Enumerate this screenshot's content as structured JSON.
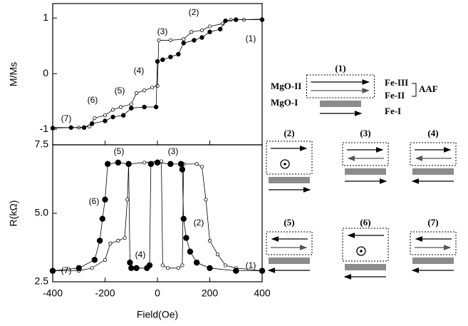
{
  "chart_data": [
    {
      "type": "line",
      "ylabel": "M/Ms",
      "xlim": [
        -400,
        400
      ],
      "ylim": [
        -1.28,
        1.26
      ],
      "xticks": [
        -400,
        -200,
        0,
        200,
        400
      ],
      "yticks": [
        -1,
        0,
        1
      ],
      "annotations": [
        "(1)",
        "(2)",
        "(3)",
        "(4)",
        "(5)",
        "(6)",
        "(7)"
      ],
      "series": [
        {
          "color": "#000000",
          "marker": "open",
          "x": [
            -400,
            -300,
            -260,
            -240,
            -200,
            -170,
            -140,
            -100,
            -80,
            -50,
            -20,
            0,
            5,
            50,
            100,
            130,
            170,
            200,
            250,
            280,
            330,
            400
          ],
          "values": [
            -0.97,
            -0.97,
            -0.95,
            -0.8,
            -0.75,
            -0.65,
            -0.6,
            -0.55,
            -0.35,
            -0.3,
            -0.25,
            -0.22,
            0.6,
            0.6,
            0.62,
            0.75,
            0.78,
            0.85,
            0.9,
            0.97,
            0.97,
            0.98
          ]
        },
        {
          "color": "#000000",
          "marker": "filled",
          "x": [
            400,
            300,
            260,
            240,
            200,
            170,
            140,
            100,
            80,
            50,
            20,
            0,
            -5,
            -50,
            -100,
            -130,
            -170,
            -200,
            -250,
            -280,
            -330,
            -400
          ],
          "values": [
            0.97,
            0.97,
            0.95,
            0.8,
            0.75,
            0.65,
            0.6,
            0.55,
            0.35,
            0.3,
            0.25,
            0.22,
            -0.6,
            -0.6,
            -0.62,
            -0.75,
            -0.78,
            -0.85,
            -0.9,
            -0.97,
            -0.97,
            -0.98
          ]
        }
      ]
    },
    {
      "type": "line",
      "ylabel": "R(kΩ)",
      "xlabel": "Field(Oe)",
      "xlim": [
        -400,
        400
      ],
      "ylim": [
        2.5,
        7.5
      ],
      "xticks": [
        -400,
        -200,
        0,
        200,
        400
      ],
      "yticks": [
        2.5,
        {
          "value": 5,
          "label": "5.0"
        },
        7.5
      ],
      "annotations": [
        "(5)",
        "(3)",
        "(6)",
        "(2)",
        "(4)",
        "(7)",
        "(1)"
      ],
      "series": [
        {
          "color": "#000000",
          "marker": "open",
          "x": [
            -400,
            -300,
            -250,
            -200,
            -180,
            -150,
            -125,
            -115,
            -110,
            -50,
            0,
            15,
            20,
            40,
            80,
            95,
            100,
            150,
            170,
            185,
            200,
            230,
            260,
            300,
            400
          ],
          "values": [
            2.9,
            2.9,
            3.0,
            3.3,
            3.9,
            4.0,
            4.1,
            5.5,
            6.8,
            6.85,
            6.9,
            6.9,
            3.1,
            3.0,
            3.0,
            3.1,
            6.8,
            6.8,
            6.7,
            5.5,
            4.0,
            3.5,
            3.1,
            3.0,
            2.9
          ]
        },
        {
          "color": "#000000",
          "marker": "filled",
          "x": [
            400,
            300,
            200,
            150,
            125,
            110,
            100,
            95,
            90,
            50,
            0,
            -25,
            -30,
            -40,
            -80,
            -100,
            -105,
            -110,
            -150,
            -190,
            -200,
            -210,
            -220,
            -240,
            -300,
            -400
          ],
          "values": [
            2.9,
            2.9,
            3.0,
            3.2,
            3.6,
            4.1,
            4.8,
            6.6,
            6.8,
            6.8,
            6.85,
            6.8,
            3.1,
            3.0,
            3.0,
            3.0,
            3.2,
            6.8,
            6.85,
            6.8,
            5.5,
            4.8,
            4.0,
            3.3,
            3.0,
            2.9
          ]
        }
      ]
    }
  ],
  "diagram": {
    "panel_labels": [
      "(1)",
      "(2)",
      "(3)",
      "(4)",
      "(5)",
      "(6)",
      "(7)"
    ],
    "layer_labels": [
      "MgO-II",
      "MgO-I",
      "Fe-III",
      "Fe-II",
      "Fe-I"
    ],
    "group_label": "AAF"
  }
}
